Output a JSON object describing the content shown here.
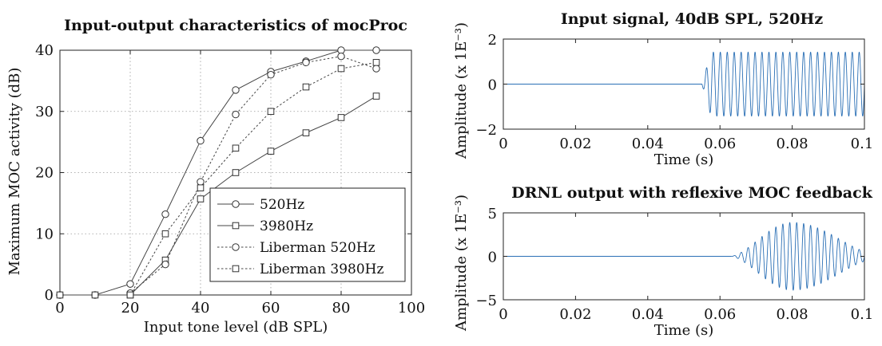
{
  "chart_data": [
    {
      "type": "line",
      "title": "Input-output characteristics of mocProc",
      "xlabel": "Input tone level (dB SPL)",
      "ylabel": "Maximum MOC activity (dB)",
      "xlim": [
        0,
        100
      ],
      "ylim": [
        0,
        40
      ],
      "xticks": [
        "0",
        "20",
        "40",
        "60",
        "80",
        "100"
      ],
      "yticks": [
        "0",
        "10",
        "20",
        "30",
        "40"
      ],
      "grid": true,
      "legend_position": "bottom-right",
      "series": [
        {
          "name": "520Hz",
          "line": "solid",
          "marker": "circle",
          "x": [
            0,
            10,
            20,
            30,
            40,
            50,
            60,
            70,
            80,
            90
          ],
          "y": [
            0,
            0,
            1.8,
            13.2,
            25.2,
            33.5,
            36.5,
            38.2,
            40,
            40
          ]
        },
        {
          "name": "3980Hz",
          "line": "solid",
          "marker": "square",
          "x": [
            0,
            10,
            20,
            30,
            40,
            50,
            60,
            70,
            80,
            90
          ],
          "y": [
            0,
            0,
            0,
            5.7,
            15.7,
            20,
            23.5,
            26.5,
            29,
            32.5
          ]
        },
        {
          "name": "Liberman 520Hz",
          "line": "dashed",
          "marker": "circle",
          "x": [
            20,
            30,
            40,
            50,
            60,
            70,
            80,
            90
          ],
          "y": [
            0.3,
            5,
            18.5,
            29.5,
            36,
            38,
            39,
            37
          ]
        },
        {
          "name": "Liberman 3980Hz",
          "line": "dashed",
          "marker": "square",
          "x": [
            20,
            30,
            40,
            50,
            60,
            70,
            80,
            90
          ],
          "y": [
            0,
            10,
            17.5,
            24,
            30,
            34,
            37,
            38
          ]
        }
      ]
    },
    {
      "type": "line",
      "title": "Input signal, 40dB SPL, 520Hz",
      "xlabel": "Time (s)",
      "ylabel": "Amplitude (x 1E⁻³)",
      "xlim": [
        0,
        0.1
      ],
      "ylim": [
        -2,
        2
      ],
      "xticks": [
        "0",
        "0.02",
        "0.04",
        "0.06",
        "0.08",
        "0.1"
      ],
      "yticks": [
        "−2",
        "0",
        "2"
      ],
      "grid": false,
      "signal": {
        "frequency_hz": 520,
        "onset_s": 0.055,
        "end_s": 0.1,
        "amplitude": 1.42,
        "ramp_s": 0.0025
      },
      "color": "#2a6fb5"
    },
    {
      "type": "line",
      "title": "DRNL output with reflexive MOC feedback",
      "xlabel": "Time (s)",
      "ylabel": "Amplitude (x 1E⁻³)",
      "xlim": [
        0,
        0.1
      ],
      "ylim": [
        -5,
        5
      ],
      "xticks": [
        "0",
        "0.02",
        "0.04",
        "0.06",
        "0.08",
        "0.1"
      ],
      "yticks": [
        "−5",
        "0",
        "5"
      ],
      "grid": false,
      "signal": {
        "frequency_hz": 520,
        "onset_s": 0.063,
        "peak_s": 0.08,
        "end_s": 0.1,
        "peak_amplitude": 3.9,
        "end_amplitude": 0.6
      },
      "color": "#2a6fb5"
    }
  ]
}
